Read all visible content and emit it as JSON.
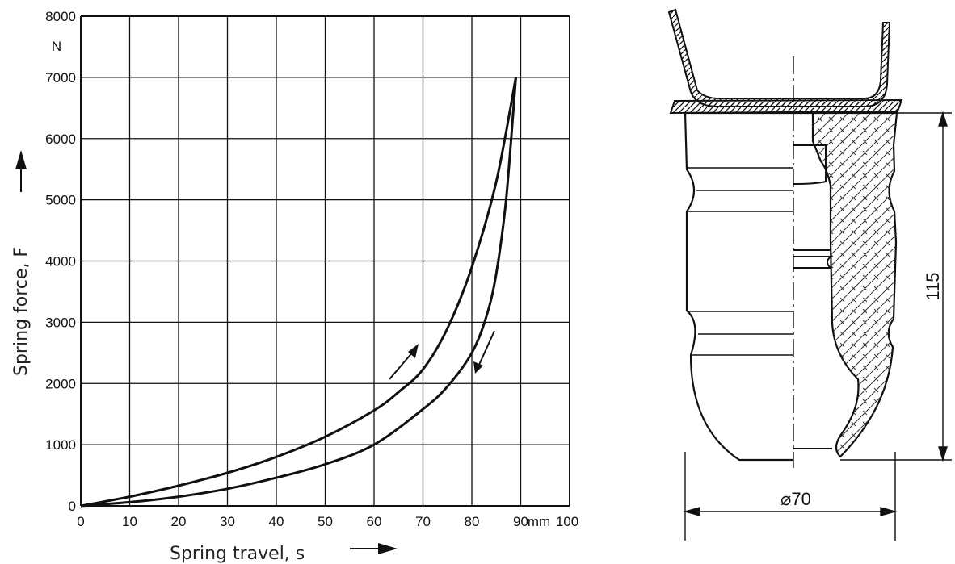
{
  "chart_data": {
    "type": "line",
    "xlabel": "Spring travel, s",
    "ylabel": "Spring force, F",
    "x_unit": "mm",
    "y_unit": "N",
    "xlim": [
      0,
      100
    ],
    "ylim": [
      0,
      8000
    ],
    "x_ticks": [
      "0",
      "10",
      "20",
      "30",
      "40",
      "50",
      "60",
      "70",
      "80",
      "90"
    ],
    "x_last_tick": "100",
    "y_ticks": [
      "0",
      "1000",
      "2000",
      "3000",
      "4000",
      "5000",
      "6000",
      "7000",
      "8000"
    ],
    "grid": true,
    "series": [
      {
        "direction": "loading",
        "x": [
          0,
          10,
          20,
          30,
          40,
          50,
          60,
          65,
          70,
          75,
          80,
          85,
          89
        ],
        "y": [
          0,
          150,
          330,
          540,
          800,
          1130,
          1560,
          1860,
          2230,
          2900,
          3900,
          5300,
          7000
        ]
      },
      {
        "direction": "unloading",
        "x": [
          89,
          87,
          85,
          83,
          80,
          75,
          70,
          60,
          50,
          40,
          30,
          20,
          10,
          0
        ],
        "y": [
          7000,
          5000,
          3800,
          3100,
          2500,
          1950,
          1580,
          1000,
          680,
          460,
          280,
          150,
          60,
          0
        ]
      }
    ]
  },
  "section": {
    "height_label": "115",
    "diameter_label": "⌀70"
  }
}
